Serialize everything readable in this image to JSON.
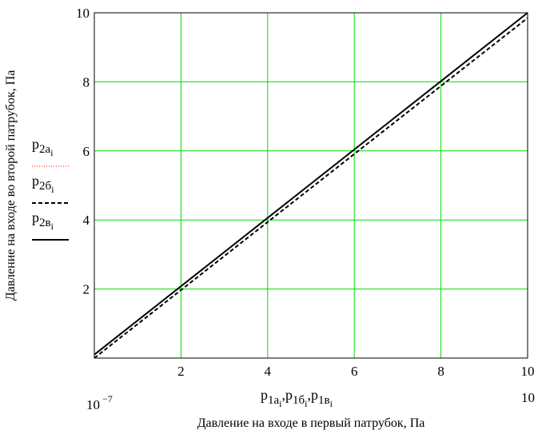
{
  "chart_data": {
    "type": "line",
    "xlabel": "Давление на входе в первый патрубок, Па",
    "ylabel": "Давление на входе во второй патрубок, Па",
    "x_scale_text": {
      "left": "10",
      "left_exp": "−7",
      "right": "10"
    },
    "xlim": [
      1e-07,
      10
    ],
    "ylim": [
      0,
      10
    ],
    "x_ticks": [
      2,
      4,
      6,
      8,
      10
    ],
    "y_ticks": [
      2,
      4,
      6,
      8,
      10
    ],
    "grid": true,
    "grid_color": "#00dd00",
    "x_series_label": {
      "main": "p",
      "parts": [
        {
          "sub": "1a",
          "idx": "i"
        },
        {
          "sub": "1б",
          "idx": "i"
        },
        {
          "sub": "1в",
          "idx": "i"
        }
      ],
      "separator": ","
    },
    "series": [
      {
        "name": "p2a",
        "legend_main": "p",
        "legend_sub": "2a",
        "legend_idx": "i",
        "color": "#ff0000",
        "dash": "1,2",
        "width": 1,
        "x": [
          0,
          10
        ],
        "y": [
          0.1,
          10.0
        ]
      },
      {
        "name": "p2б",
        "legend_main": "p",
        "legend_sub": "2б",
        "legend_idx": "i",
        "color": "#000000",
        "dash": "5,3",
        "width": 2,
        "x": [
          0,
          10
        ],
        "y": [
          0.0,
          9.85
        ]
      },
      {
        "name": "p2в",
        "legend_main": "p",
        "legend_sub": "2в",
        "legend_idx": "i",
        "color": "#000000",
        "dash": "",
        "width": 2,
        "x": [
          0,
          10
        ],
        "y": [
          0.1,
          10.0
        ]
      }
    ]
  }
}
